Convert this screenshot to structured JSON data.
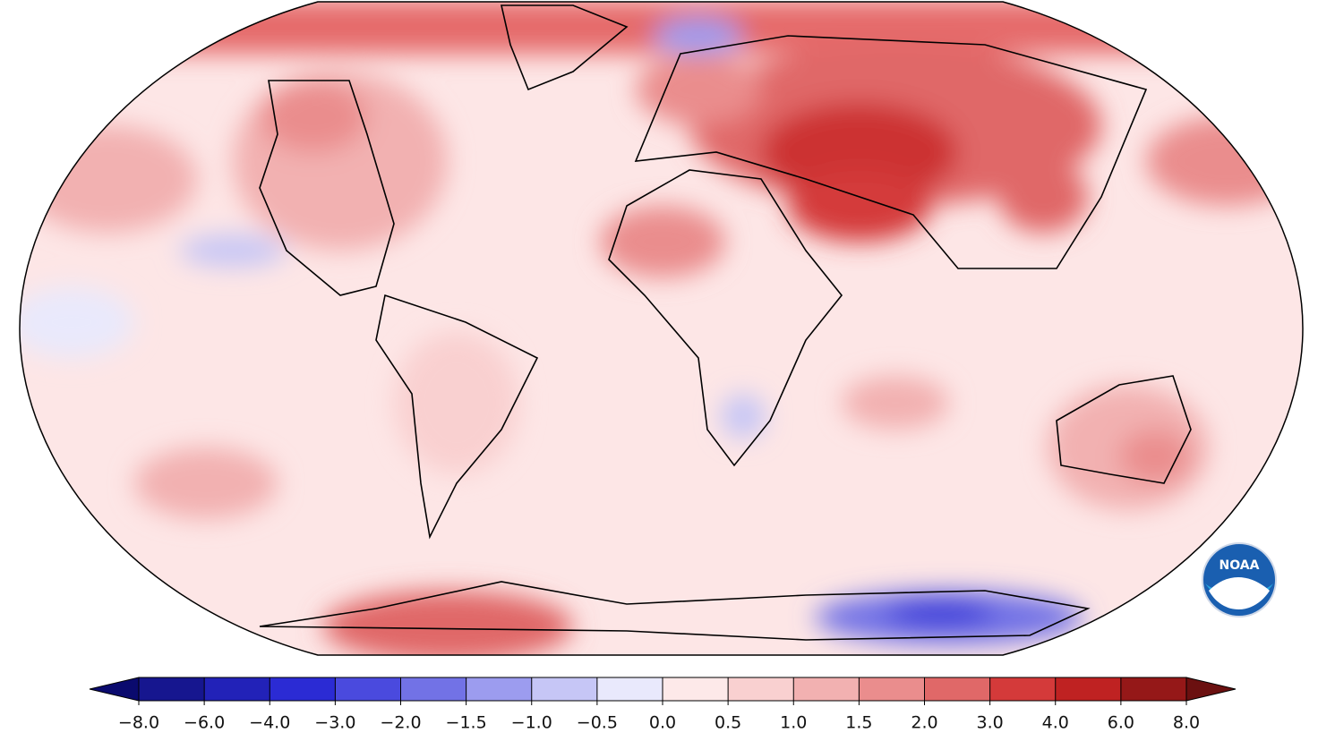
{
  "logo": {
    "text": "NOAA"
  },
  "legend": {
    "ticks": [
      {
        "value": -8,
        "label": "−8.0"
      },
      {
        "value": -6,
        "label": "−6.0"
      },
      {
        "value": -4,
        "label": "−4.0"
      },
      {
        "value": -3,
        "label": "−3.0"
      },
      {
        "value": -2,
        "label": "−2.0"
      },
      {
        "value": -1.5,
        "label": "−1.5"
      },
      {
        "value": -1,
        "label": "−1.0"
      },
      {
        "value": -0.5,
        "label": "−0.5"
      },
      {
        "value": 0,
        "label": "0.0"
      },
      {
        "value": 0.5,
        "label": "0.5"
      },
      {
        "value": 1,
        "label": "1.0"
      },
      {
        "value": 1.5,
        "label": "1.5"
      },
      {
        "value": 2,
        "label": "2.0"
      },
      {
        "value": 3,
        "label": "3.0"
      },
      {
        "value": 4,
        "label": "4.0"
      },
      {
        "value": 6,
        "label": "6.0"
      },
      {
        "value": 8,
        "label": "8.0"
      }
    ],
    "colors": [
      "#16168f",
      "#2222b8",
      "#2b2bd4",
      "#4a4ade",
      "#7272e6",
      "#9c9cef",
      "#c6c6f6",
      "#e9e9fc",
      "#fde9e9",
      "#f9d0d0",
      "#f2b1b1",
      "#ea8d8d",
      "#e06868",
      "#d43a3a",
      "#bf2222",
      "#951818"
    ],
    "under_color": "#0a0a6e",
    "over_color": "#6b1010"
  }
}
